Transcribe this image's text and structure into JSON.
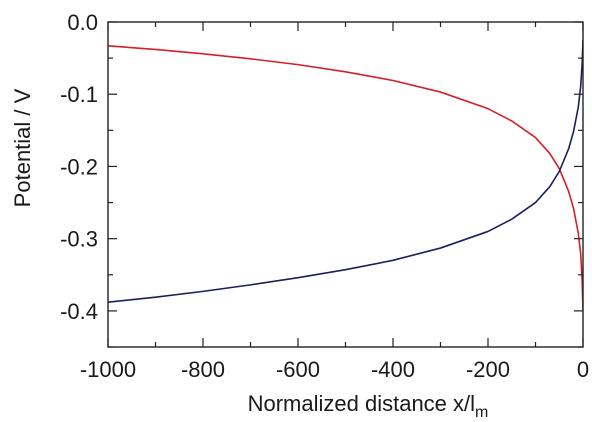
{
  "chart_data": {
    "type": "line",
    "title": "",
    "xlabel": "Normalized distance x/l",
    "xlabel_subscript": "m",
    "ylabel": "Potential / V",
    "xlim": [
      -1000,
      0
    ],
    "ylim": [
      -0.45,
      0.0
    ],
    "x_ticks": [
      {
        "value": -1000,
        "label": "-1000"
      },
      {
        "value": -800,
        "label": "-800"
      },
      {
        "value": -600,
        "label": "-600"
      },
      {
        "value": -400,
        "label": "-400"
      },
      {
        "value": -200,
        "label": "-200"
      },
      {
        "value": 0,
        "label": "0"
      }
    ],
    "x_minor_ticks": [
      -900,
      -700,
      -500,
      -300,
      -100
    ],
    "y_ticks": [
      {
        "value": 0.0,
        "label": "0.0"
      },
      {
        "value": -0.1,
        "label": "-0.1"
      },
      {
        "value": -0.2,
        "label": "-0.2"
      },
      {
        "value": -0.3,
        "label": "-0.3"
      },
      {
        "value": -0.4,
        "label": "-0.4"
      }
    ],
    "y_minor_ticks": [
      -0.05,
      -0.15,
      -0.25,
      -0.35,
      -0.45
    ],
    "grid": false,
    "legend": "none",
    "series": [
      {
        "color": "#d62027",
        "x": [
          -1000,
          -900,
          -800,
          -700,
          -600,
          -500,
          -400,
          -300,
          -200,
          -150,
          -100,
          -70,
          -50,
          -30,
          -20,
          -10,
          -5,
          -2,
          0
        ],
        "y": [
          -0.033,
          -0.038,
          -0.044,
          -0.051,
          -0.059,
          -0.069,
          -0.081,
          -0.097,
          -0.12,
          -0.137,
          -0.16,
          -0.182,
          -0.203,
          -0.235,
          -0.258,
          -0.292,
          -0.32,
          -0.355,
          -0.4
        ]
      },
      {
        "color": "#1b1f5e",
        "x": [
          -1000,
          -900,
          -800,
          -700,
          -600,
          -500,
          -400,
          -300,
          -200,
          -150,
          -100,
          -70,
          -50,
          -30,
          -20,
          -10,
          -5,
          -2,
          0
        ],
        "y": [
          -0.388,
          -0.381,
          -0.373,
          -0.364,
          -0.354,
          -0.343,
          -0.33,
          -0.313,
          -0.29,
          -0.273,
          -0.25,
          -0.228,
          -0.207,
          -0.175,
          -0.152,
          -0.118,
          -0.09,
          -0.06,
          -0.025
        ]
      }
    ]
  }
}
